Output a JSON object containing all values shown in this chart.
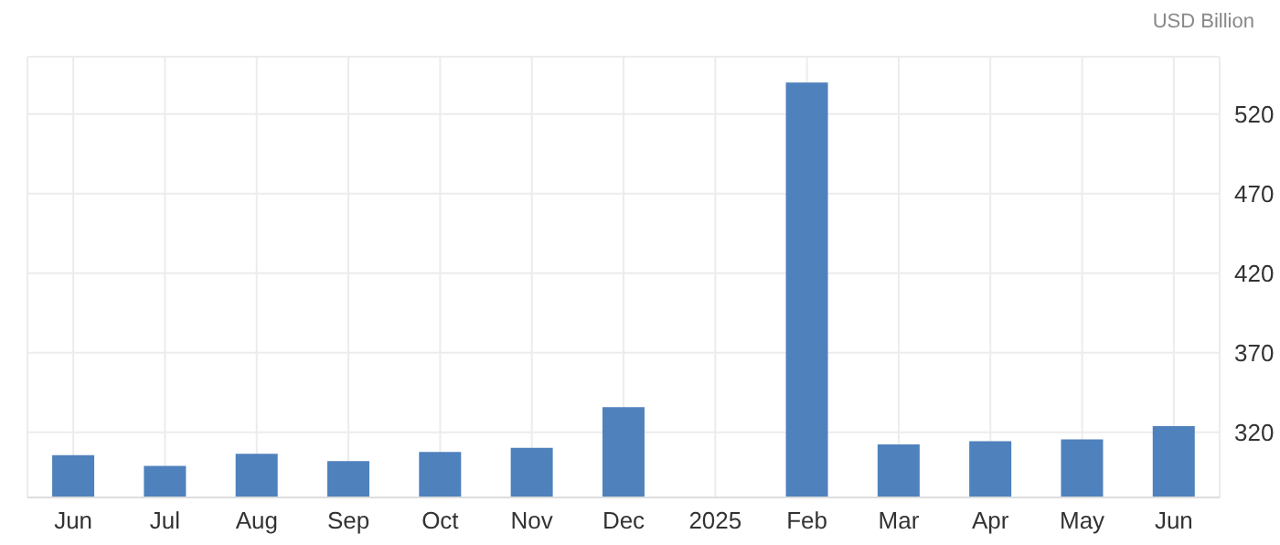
{
  "chart_data": {
    "type": "bar",
    "ylabel": "USD Billion",
    "categories": [
      "Jun",
      "Jul",
      "Aug",
      "Sep",
      "Oct",
      "Nov",
      "Dec",
      "2025",
      "Feb",
      "Mar",
      "Apr",
      "May",
      "Jun"
    ],
    "values": [
      305.6,
      298.8,
      306.5,
      301.9,
      307.6,
      310.2,
      335.7,
      null,
      539.8,
      312.3,
      314.4,
      315.5,
      323.8
    ],
    "color": "#4f81bd",
    "ylim": [
      279,
      556
    ],
    "yticks": [
      320,
      370,
      420,
      470,
      520
    ],
    "grid": true
  }
}
